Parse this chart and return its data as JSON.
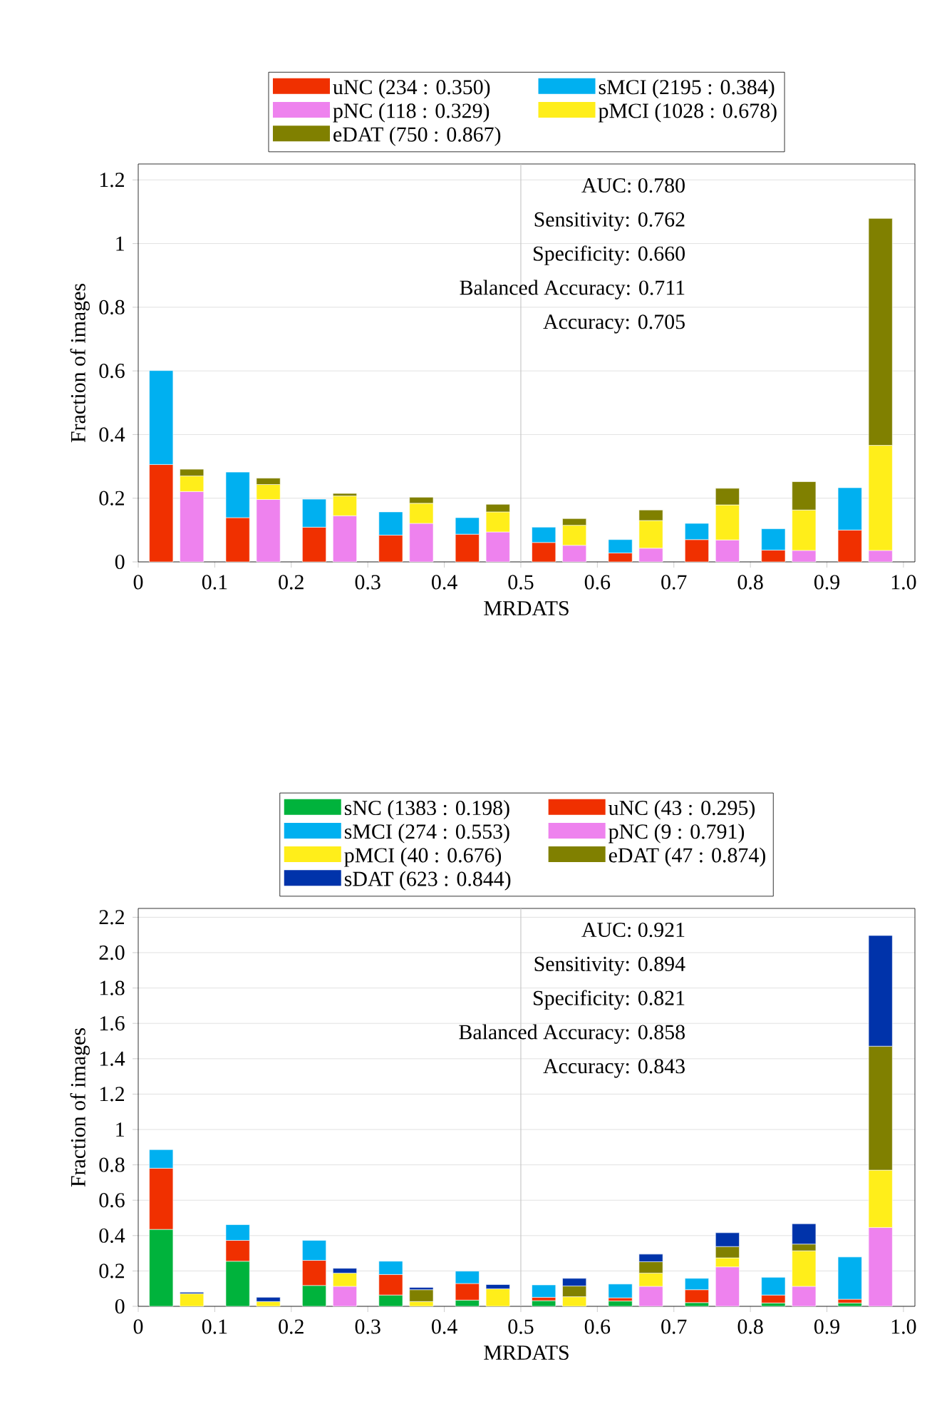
{
  "chart_data": [
    {
      "type": "bar",
      "stacked": true,
      "xlabel": "MRDATS",
      "ylabel": "Fraction of images",
      "xlim": [
        0,
        1.015
      ],
      "ylim": [
        0,
        1.25
      ],
      "xticks": [
        0,
        0.1,
        0.2,
        0.3,
        0.4,
        0.5,
        0.6,
        0.7,
        0.8,
        0.9,
        {
          "value": 1,
          "label": "1.0"
        }
      ],
      "yticks": [
        0,
        0.2,
        0.4,
        0.6,
        0.8,
        1,
        1.2
      ],
      "grid": "y",
      "legend": "top",
      "ref_lines": [
        {
          "axis": "x",
          "value": 0.5,
          "color": "#c8c8c8"
        }
      ],
      "annotations": [
        "AUC: 0.780",
        "Sensitivity: 0.762",
        "Specificity: 0.660",
        "Balanced Accuracy: 0.711",
        "Accuracy: 0.705"
      ],
      "x": [
        0.03,
        0.07,
        0.13,
        0.17,
        0.23,
        0.27,
        0.33,
        0.37,
        0.43,
        0.47,
        0.53,
        0.57,
        0.63,
        0.67,
        0.73,
        0.77,
        0.83,
        0.87,
        0.93,
        0.97
      ],
      "series": [
        {
          "name": "uNC (234 : 0.350)",
          "color": "#f03000",
          "values": [
            0.306,
            null,
            0.139,
            null,
            0.109,
            null,
            0.084,
            null,
            0.087,
            null,
            0.061,
            null,
            0.028,
            null,
            0.07,
            null,
            0.037,
            null,
            0.1,
            null
          ]
        },
        {
          "name": "sMCI (2195 : 0.384)",
          "color": "#00b0f0",
          "values": [
            0.295,
            null,
            0.143,
            null,
            0.088,
            null,
            0.073,
            null,
            0.052,
            null,
            0.048,
            null,
            0.042,
            null,
            0.051,
            null,
            0.067,
            null,
            0.133,
            null
          ]
        },
        {
          "name": "pNC (118 : 0.329)",
          "color": "#ee82ee",
          "values": [
            null,
            0.221,
            null,
            0.196,
            null,
            0.145,
            null,
            0.121,
            null,
            0.094,
            null,
            0.052,
            null,
            0.043,
            null,
            0.069,
            null,
            0.036,
            null,
            0.036
          ]
        },
        {
          "name": "pMCI (1028 : 0.678)",
          "color": "#ffee1a",
          "values": [
            null,
            0.049,
            null,
            0.047,
            null,
            0.062,
            null,
            0.063,
            null,
            0.063,
            null,
            0.063,
            null,
            0.087,
            null,
            0.11,
            null,
            0.127,
            null,
            0.33
          ]
        },
        {
          "name": "eDAT (750 : 0.867)",
          "color": "#808000",
          "values": [
            null,
            0.021,
            null,
            0.02,
            null,
            0.008,
            null,
            0.019,
            null,
            0.024,
            null,
            0.021,
            null,
            0.033,
            null,
            0.052,
            null,
            0.089,
            null,
            0.713
          ]
        }
      ]
    },
    {
      "type": "bar",
      "stacked": true,
      "xlabel": "MRDATS",
      "ylabel": "Fraction of images",
      "xlim": [
        0,
        1.015
      ],
      "ylim": [
        0,
        2.25
      ],
      "xticks": [
        0,
        0.1,
        0.2,
        0.3,
        0.4,
        0.5,
        0.6,
        0.7,
        0.8,
        0.9,
        {
          "value": 1,
          "label": "1.0"
        }
      ],
      "yticks": [
        0,
        0.2,
        0.4,
        0.6,
        0.8,
        1,
        1.2,
        1.4,
        1.6,
        1.8,
        {
          "value": 2,
          "label": "2.0"
        },
        2.2
      ],
      "grid": "y",
      "legend": "top",
      "ref_lines": [
        {
          "axis": "x",
          "value": 0.5,
          "color": "#c8c8c8"
        }
      ],
      "annotations": [
        "AUC: 0.921",
        "Sensitivity: 0.894",
        "Specificity: 0.821",
        "Balanced Accuracy: 0.858",
        "Accuracy: 0.843"
      ],
      "x": [
        0.03,
        0.07,
        0.13,
        0.17,
        0.23,
        0.27,
        0.33,
        0.37,
        0.43,
        0.47,
        0.53,
        0.57,
        0.63,
        0.67,
        0.73,
        0.77,
        0.83,
        0.87,
        0.93,
        0.97
      ],
      "series": [
        {
          "name": "sNC (1383 : 0.198)",
          "color": "#00b33c",
          "values": [
            0.435,
            null,
            0.255,
            null,
            0.118,
            null,
            0.064,
            null,
            0.035,
            null,
            0.032,
            null,
            0.03,
            null,
            0.021,
            null,
            0.019,
            null,
            0.019,
            null
          ]
        },
        {
          "name": "uNC (43 : 0.295)",
          "color": "#f03000",
          "values": [
            0.346,
            null,
            0.118,
            null,
            0.142,
            null,
            0.116,
            null,
            0.094,
            null,
            0.019,
            null,
            0.018,
            null,
            0.073,
            null,
            0.045,
            null,
            0.021,
            null
          ]
        },
        {
          "name": "sMCI (274 : 0.553)",
          "color": "#00b0f0",
          "values": [
            0.105,
            null,
            0.089,
            null,
            0.113,
            null,
            0.075,
            null,
            0.07,
            null,
            0.07,
            null,
            0.078,
            null,
            0.064,
            null,
            0.1,
            null,
            0.239,
            null
          ]
        },
        {
          "name": "pNC (9 : 0.791)",
          "color": "#ee82ee",
          "values": [
            null,
            null,
            null,
            null,
            null,
            0.113,
            null,
            null,
            null,
            null,
            null,
            null,
            null,
            0.113,
            null,
            0.223,
            null,
            0.113,
            null,
            0.446
          ]
        },
        {
          "name": "pMCI (40 : 0.676)",
          "color": "#ffee1a",
          "values": [
            null,
            0.072,
            null,
            0.027,
            null,
            0.075,
            null,
            0.027,
            null,
            0.099,
            null,
            0.054,
            null,
            0.075,
            null,
            0.051,
            null,
            0.201,
            null,
            0.324
          ]
        },
        {
          "name": "eDAT (47 : 0.874)",
          "color": "#808000",
          "values": [
            null,
            null,
            null,
            null,
            null,
            null,
            null,
            0.067,
            null,
            null,
            null,
            0.061,
            null,
            0.064,
            null,
            0.064,
            null,
            0.038,
            null,
            0.701
          ]
        },
        {
          "name": "sDAT (623 : 0.844)",
          "color": "#0033aa",
          "values": [
            null,
            0.008,
            null,
            0.024,
            null,
            0.027,
            null,
            0.013,
            null,
            0.024,
            null,
            0.043,
            null,
            0.043,
            null,
            0.078,
            null,
            0.115,
            null,
            0.626
          ]
        }
      ]
    }
  ]
}
